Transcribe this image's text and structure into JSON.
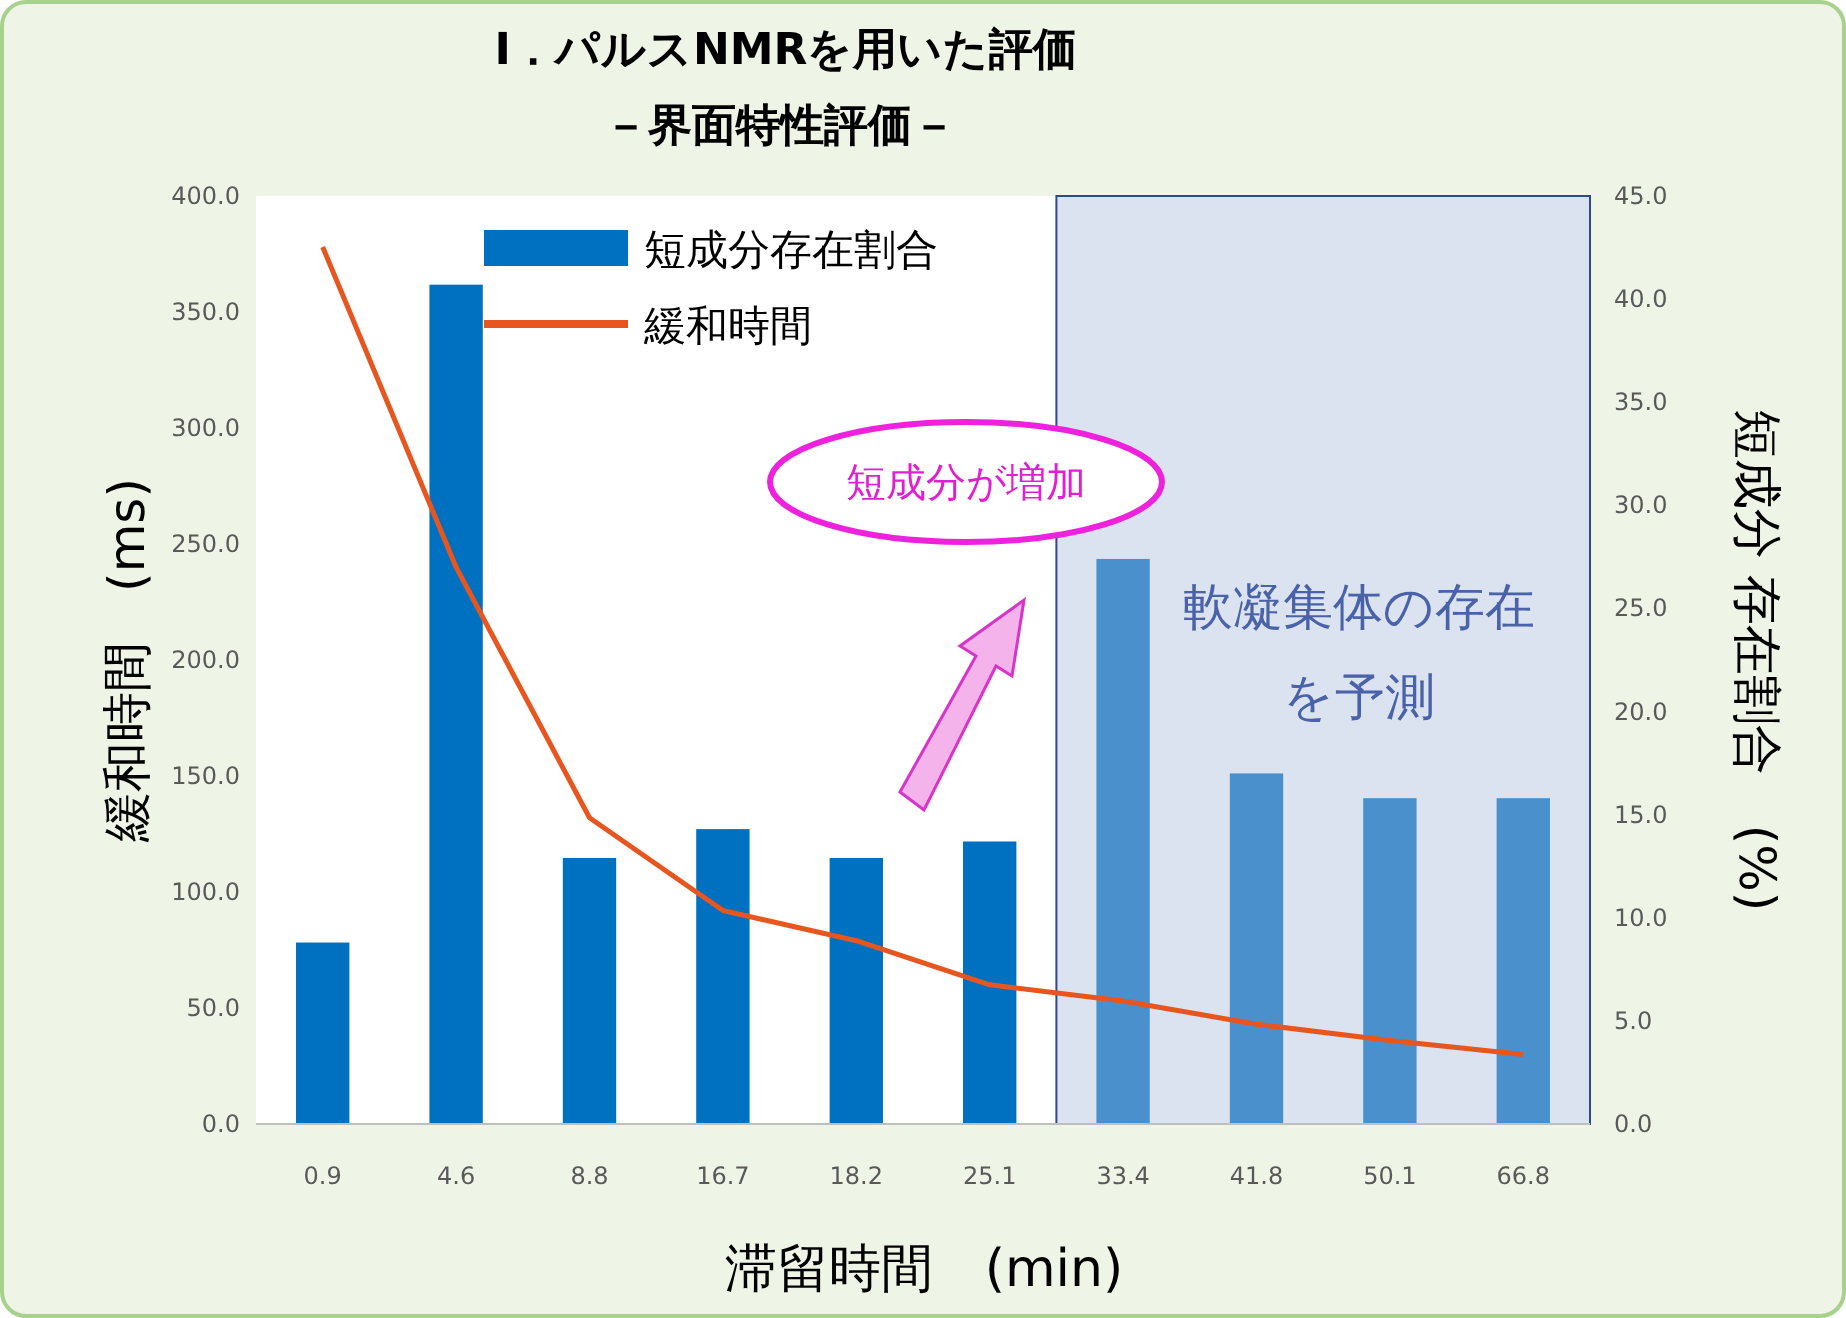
{
  "chart_data": {
    "type": "bar",
    "title": "Ⅰ．パルスNMRを用いた評価",
    "subtitle": "－界面特性評価－",
    "xlabel": "滞留時間　(min)",
    "ylabel": "緩和時間　(ms)",
    "y2label": "短成分 存在割合　(%)",
    "categories": [
      "0.9",
      "4.6",
      "8.8",
      "16.7",
      "18.2",
      "25.1",
      "33.4",
      "41.8",
      "50.1",
      "66.8"
    ],
    "series": [
      {
        "name": "短成分存在割合",
        "type": "bar",
        "axis": "y2",
        "colors": [
          "#0070c0",
          "#0070c0",
          "#0070c0",
          "#0070c0",
          "#0070c0",
          "#0070c0",
          "#4a90cc",
          "#4a90cc",
          "#4a90cc",
          "#4a90cc"
        ],
        "values": [
          8.8,
          40.7,
          12.9,
          14.3,
          12.9,
          13.7,
          27.4,
          17.0,
          15.8,
          15.8
        ]
      },
      {
        "name": "緩和時間",
        "type": "line",
        "color": "#e8561f",
        "values": [
          378,
          240,
          132,
          92,
          79,
          60,
          53,
          43,
          36,
          30
        ]
      }
    ],
    "ylim": [
      0,
      400
    ],
    "yticks": [
      {
        "value": 0,
        "label": "0.0"
      },
      {
        "value": 50,
        "label": "50.0"
      },
      {
        "value": 100,
        "label": "100.0"
      },
      {
        "value": 150,
        "label": "150.0"
      },
      {
        "value": 200,
        "label": "200.0"
      },
      {
        "value": 250,
        "label": "250.0"
      },
      {
        "value": 300,
        "label": "300.0"
      },
      {
        "value": 350,
        "label": "350.0"
      },
      {
        "value": 400,
        "label": "400.0"
      }
    ],
    "y2lim": [
      0,
      45
    ],
    "y2ticks": [
      {
        "value": 0,
        "label": "0.0"
      },
      {
        "value": 5,
        "label": "5.0"
      },
      {
        "value": 10,
        "label": "10.0"
      },
      {
        "value": 15,
        "label": "15.0"
      },
      {
        "value": 20,
        "label": "20.0"
      },
      {
        "value": 25,
        "label": "25.0"
      },
      {
        "value": 30,
        "label": "30.0"
      },
      {
        "value": 35,
        "label": "35.0"
      },
      {
        "value": 40,
        "label": "40.0"
      },
      {
        "value": 45,
        "label": "45.0"
      }
    ],
    "bands": [
      {
        "axis": "x",
        "from": "33.4",
        "to": "66.8",
        "label": "軟凝集体の存在を予測",
        "color": "#dce3f0"
      }
    ],
    "annotations": [
      "短成分が増加"
    ],
    "legend": "top left",
    "grid": false,
    "marker": "none",
    "line_style": "solid"
  }
}
